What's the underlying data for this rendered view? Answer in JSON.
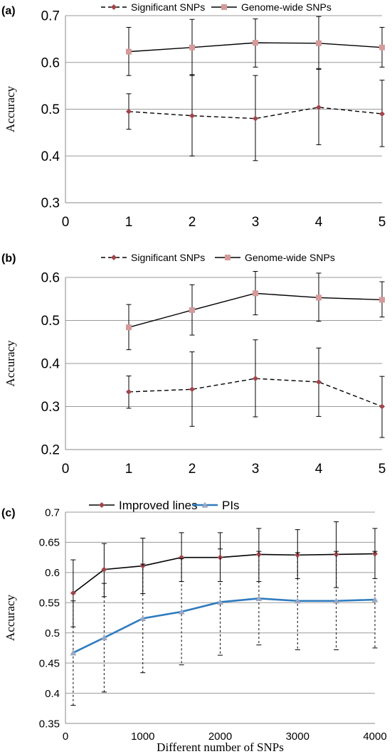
{
  "chart_data": [
    {
      "panel_label": "(a)",
      "type": "line",
      "ylabel": "Accuracy",
      "xlabel": "",
      "xlim": [
        0,
        5
      ],
      "ylim": [
        0.3,
        0.7
      ],
      "xticks": [
        "0",
        "1",
        "2",
        "3",
        "4",
        "5"
      ],
      "yticks": [
        "0.3",
        "0.4",
        "0.5",
        "0.6",
        "0.7"
      ],
      "ytick_values": [
        0.3,
        0.4,
        0.5,
        0.6,
        0.7
      ],
      "xtick_values": [
        0,
        1,
        2,
        3,
        4,
        5
      ],
      "grid": "horizontal",
      "legend_position": "top",
      "x": [
        1,
        2,
        3,
        4,
        5
      ],
      "series": [
        {
          "name": "Significant SNPs",
          "style": "dashed",
          "marker": "diamond",
          "color": "#000000",
          "marker_color": "#a0454a",
          "values": [
            0.495,
            0.486,
            0.48,
            0.504,
            0.49
          ],
          "err_low": [
            0.457,
            0.4,
            0.39,
            0.424,
            0.42
          ],
          "err_high": [
            0.533,
            0.574,
            0.572,
            0.585,
            0.562
          ]
        },
        {
          "name": "Genome-wide SNPs",
          "style": "solid",
          "marker": "square",
          "color": "#000000",
          "marker_color": "#d69a9a",
          "values": [
            0.623,
            0.632,
            0.642,
            0.641,
            0.632
          ],
          "err_low": [
            0.572,
            0.572,
            0.59,
            0.587,
            0.59
          ],
          "err_high": [
            0.675,
            0.692,
            0.693,
            0.698,
            0.675
          ]
        }
      ]
    },
    {
      "panel_label": "(b)",
      "type": "line",
      "ylabel": "Accuracy",
      "xlabel": "",
      "xlim": [
        0,
        5
      ],
      "ylim": [
        0.2,
        0.6
      ],
      "xticks": [
        "0",
        "1",
        "2",
        "3",
        "4",
        "5"
      ],
      "yticks": [
        "0.2",
        "0.3",
        "0.4",
        "0.5",
        "0.6"
      ],
      "ytick_values": [
        0.2,
        0.3,
        0.4,
        0.5,
        0.6
      ],
      "xtick_values": [
        0,
        1,
        2,
        3,
        4,
        5
      ],
      "grid": "horizontal",
      "legend_position": "top",
      "x": [
        1,
        2,
        3,
        4,
        5
      ],
      "series": [
        {
          "name": "Significant SNPs",
          "style": "dashed",
          "marker": "diamond",
          "color": "#000000",
          "marker_color": "#a0454a",
          "values": [
            0.334,
            0.34,
            0.365,
            0.357,
            0.3
          ],
          "err_low": [
            0.296,
            0.254,
            0.276,
            0.277,
            0.228
          ],
          "err_high": [
            0.371,
            0.427,
            0.455,
            0.436,
            0.37
          ]
        },
        {
          "name": "Genome-wide SNPs",
          "style": "solid",
          "marker": "square",
          "color": "#000000",
          "marker_color": "#d69a9a",
          "values": [
            0.484,
            0.524,
            0.563,
            0.553,
            0.548
          ],
          "err_low": [
            0.432,
            0.466,
            0.513,
            0.498,
            0.508
          ],
          "err_high": [
            0.537,
            0.583,
            0.614,
            0.61,
            0.59
          ]
        }
      ]
    },
    {
      "panel_label": "(c)",
      "type": "line",
      "ylabel": "Accuracy",
      "xlabel": "Different number of SNPs",
      "xlim": [
        0,
        4000
      ],
      "ylim": [
        0.35,
        0.7
      ],
      "xticks": [
        "0",
        "1000",
        "2000",
        "3000",
        "4000"
      ],
      "xtick_values": [
        0,
        1000,
        2000,
        3000,
        4000
      ],
      "yticks": [
        "0.35",
        "0.4",
        "0.45",
        "0.5",
        "0.55",
        "0.6",
        "0.65",
        "0.7"
      ],
      "ytick_values": [
        0.35,
        0.4,
        0.45,
        0.5,
        0.55,
        0.6,
        0.65,
        0.7
      ],
      "grid": "horizontal",
      "legend_position": "top",
      "x": [
        100,
        500,
        1000,
        1500,
        2000,
        2500,
        3000,
        3500,
        4000
      ],
      "series": [
        {
          "name": "Improved lines",
          "style": "solid",
          "marker": "diamond",
          "color": "#000000",
          "marker_color": "#a0454a",
          "width": 1.6,
          "values": [
            0.566,
            0.605,
            0.611,
            0.625,
            0.625,
            0.63,
            0.629,
            0.63,
            0.631
          ],
          "err_low": [
            0.51,
            0.56,
            0.565,
            0.585,
            0.585,
            0.585,
            0.59,
            0.575,
            0.59
          ],
          "err_high": [
            0.621,
            0.648,
            0.657,
            0.666,
            0.666,
            0.673,
            0.671,
            0.684,
            0.673
          ],
          "err_style": "solid"
        },
        {
          "name": "PIs",
          "style": "solid",
          "marker": "triangle",
          "color": "#2e7bbf",
          "marker_color": "#9aa8c0",
          "width": 2.6,
          "values": [
            0.467,
            0.492,
            0.524,
            0.535,
            0.551,
            0.557,
            0.553,
            0.553,
            0.555
          ],
          "err_low": [
            0.38,
            0.402,
            0.434,
            0.447,
            0.463,
            0.48,
            0.472,
            0.472,
            0.475
          ],
          "err_high": [
            0.553,
            0.582,
            0.614,
            0.623,
            0.639,
            0.635,
            0.633,
            0.635,
            0.635
          ],
          "err_style": "dashed"
        }
      ]
    }
  ]
}
